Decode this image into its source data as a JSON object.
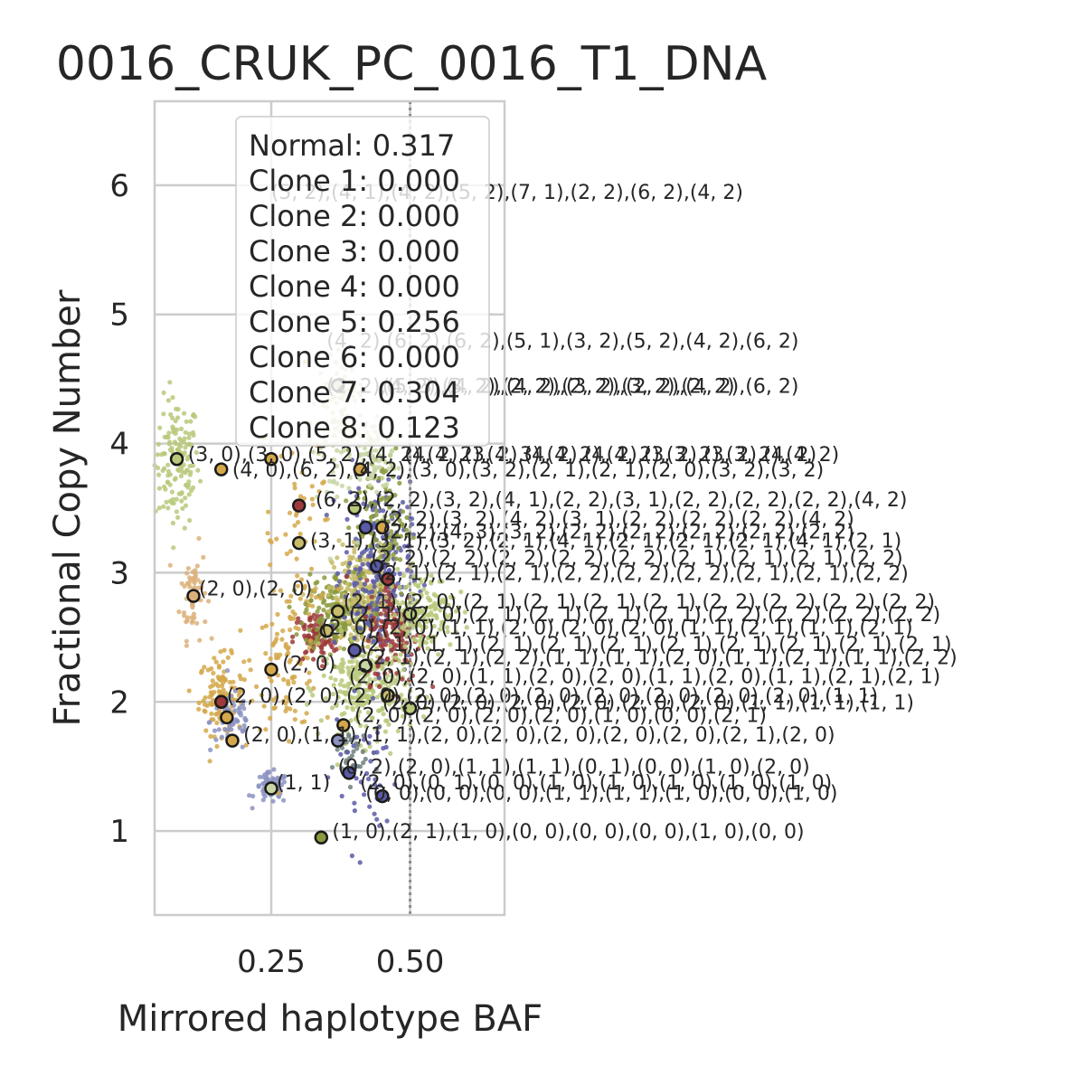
{
  "chart_data": {
    "type": "scatter",
    "title": "0016_CRUK_PC_0016_T1_DNA",
    "xlabel": "Mirrored haplotype BAF",
    "ylabel": "Fractional Copy Number",
    "xlim": [
      0.04,
      0.67
    ],
    "ylim": [
      0.35,
      6.65
    ],
    "xticks": [
      "0.25",
      "0.50"
    ],
    "xtick_values": [
      0.25,
      0.5
    ],
    "yticks": [
      "1",
      "2",
      "3",
      "4",
      "5",
      "6"
    ],
    "ytick_values": [
      1,
      2,
      3,
      4,
      5,
      6
    ],
    "grid": true,
    "vline": 0.5,
    "legend_placement": "top-center",
    "legend": [
      "Normal: 0.317",
      "Clone 1: 0.000",
      "Clone 2: 0.000",
      "Clone 3: 0.000",
      "Clone 4: 0.000",
      "Clone 5: 0.256",
      "Clone 6: 0.000",
      "Clone 7: 0.304",
      "Clone 8: 0.123"
    ],
    "cluster_colors": [
      "#b7c97a",
      "#d4a84a",
      "#5a5aa8",
      "#8a9a3c",
      "#9e3a3a",
      "#dcb07a",
      "#8c93c2",
      "#c8bc6a",
      "#c8d6a4",
      "#6f7f7f"
    ],
    "clusters": [
      {
        "x": 0.08,
        "y": 3.85,
        "sx": 0.02,
        "sy": 0.25,
        "n": 140,
        "c": 0
      },
      {
        "x": 0.11,
        "y": 2.85,
        "sx": 0.012,
        "sy": 0.18,
        "n": 60,
        "c": 5
      },
      {
        "x": 0.16,
        "y": 2.05,
        "sx": 0.02,
        "sy": 0.15,
        "n": 120,
        "c": 1
      },
      {
        "x": 0.18,
        "y": 1.85,
        "sx": 0.02,
        "sy": 0.12,
        "n": 60,
        "c": 6
      },
      {
        "x": 0.25,
        "y": 1.33,
        "sx": 0.015,
        "sy": 0.06,
        "n": 70,
        "c": 6
      },
      {
        "x": 0.28,
        "y": 2.3,
        "sx": 0.03,
        "sy": 0.25,
        "n": 90,
        "c": 1
      },
      {
        "x": 0.33,
        "y": 2.5,
        "sx": 0.02,
        "sy": 0.1,
        "n": 90,
        "c": 4
      },
      {
        "x": 0.37,
        "y": 2.7,
        "sx": 0.03,
        "sy": 0.15,
        "n": 200,
        "c": 3
      },
      {
        "x": 0.42,
        "y": 2.8,
        "sx": 0.03,
        "sy": 0.2,
        "n": 250,
        "c": 7
      },
      {
        "x": 0.42,
        "y": 2.1,
        "sx": 0.04,
        "sy": 0.2,
        "n": 260,
        "c": 0
      },
      {
        "x": 0.44,
        "y": 3.0,
        "sx": 0.03,
        "sy": 0.35,
        "n": 250,
        "c": 2
      },
      {
        "x": 0.45,
        "y": 3.4,
        "sx": 0.025,
        "sy": 0.3,
        "n": 120,
        "c": 3
      },
      {
        "x": 0.47,
        "y": 2.55,
        "sx": 0.025,
        "sy": 0.2,
        "n": 140,
        "c": 4
      },
      {
        "x": 0.52,
        "y": 2.7,
        "sx": 0.03,
        "sy": 0.15,
        "n": 160,
        "c": 0
      },
      {
        "x": 0.43,
        "y": 3.9,
        "sx": 0.02,
        "sy": 0.15,
        "n": 80,
        "c": 8
      },
      {
        "x": 0.38,
        "y": 4.45,
        "sx": 0.015,
        "sy": 0.12,
        "n": 45,
        "c": 8
      },
      {
        "x": 0.36,
        "y": 4.0,
        "sx": 0.02,
        "sy": 0.3,
        "n": 60,
        "c": 8
      },
      {
        "x": 0.39,
        "y": 1.6,
        "sx": 0.015,
        "sy": 0.12,
        "n": 40,
        "c": 9
      },
      {
        "x": 0.42,
        "y": 1.45,
        "sx": 0.03,
        "sy": 0.3,
        "n": 40,
        "c": 2
      },
      {
        "x": 0.3,
        "y": 3.2,
        "sx": 0.03,
        "sy": 0.4,
        "n": 60,
        "c": 1
      }
    ],
    "clone_points": [
      {
        "x": 0.08,
        "y": 3.88,
        "c": 0,
        "label": "(3, 0),(3, 0),(3, 0),(5, 2),(4, 2),(4, 2)"
      },
      {
        "x": 0.16,
        "y": 3.8,
        "c": 1,
        "label": "(4, 0),(6, 2),(4, 2),(4, 2),(2, 1),(3, 0),(3, 2),(2, 1),(2, 1),(2, 0),(3, 2),(3, 2)"
      },
      {
        "x": 0.25,
        "y": 3.88,
        "c": 1,
        "label": ""
      },
      {
        "x": 0.3,
        "y": 3.52,
        "c": 4,
        "label": "(6, 2),(2, 2),(3, 2),(4, 1),(2, 2),(3, 1),(2, 2),(2, 2),(2, 2),(4, 2)"
      },
      {
        "x": 0.3,
        "y": 3.23,
        "c": 7,
        "label": "(3, 1),(3, 1),(3, 2),(2, 1),(4, 1),(2, 1),(2, 1),(2, 1),(4, 1),(2, 1)"
      },
      {
        "x": 0.11,
        "y": 2.82,
        "c": 5,
        "label": "(2, 0),(2, 0)"
      },
      {
        "x": 0.25,
        "y": 2.25,
        "c": 1,
        "label": "(2, 0)"
      },
      {
        "x": 0.16,
        "y": 2.0,
        "c": 4,
        "label": "(2, 0),(2, 0),(2, 0),(2, 0),(2, 0),(2, 0),(2, 0),(2, 0),(2, 0),(1, 1)"
      },
      {
        "x": 0.17,
        "y": 1.88,
        "c": 1,
        "label": ""
      },
      {
        "x": 0.18,
        "y": 1.7,
        "c": 1,
        "label": "(2, 0),(1, 1),(1, 1),(2, 0),(2, 0),(2, 0),(2, 0),(2, 0),(2, 0),(2, 0)"
      },
      {
        "x": 0.25,
        "y": 1.33,
        "c": 8,
        "label": "(1, 1)"
      },
      {
        "x": 0.35,
        "y": 2.55,
        "c": 7,
        "label": "(2, 0)"
      },
      {
        "x": 0.37,
        "y": 2.7,
        "c": 7,
        "label": ""
      },
      {
        "x": 0.37,
        "y": 1.7,
        "c": 6,
        "label": ""
      },
      {
        "x": 0.38,
        "y": 1.82,
        "c": 1,
        "label": ""
      },
      {
        "x": 0.39,
        "y": 1.45,
        "c": 2,
        "label": "(2, 0),(0, 0),(0, 0),(1, 1),(1, 0),(1, 0),(1, 0),(0, 0),(1, 0)"
      },
      {
        "x": 0.45,
        "y": 1.27,
        "c": 2,
        "label": "(0, 0),(0, 0),(0, 0),(1, 1),(1, 1),(1, 0),(0, 0),(1, 0)"
      },
      {
        "x": 0.34,
        "y": 0.95,
        "c": 3,
        "label": "(1, 0),(2, 1),(1, 0),(0, 0),(0, 0),(0, 0),(1, 0),(0, 0)"
      },
      {
        "x": 0.4,
        "y": 3.5,
        "c": 0,
        "label": "(2, 2),(3, 2),(4, 2),(3, 1),(2, 2),(2, 2),(2, 2),(4, 2)"
      },
      {
        "x": 0.42,
        "y": 3.35,
        "c": 2,
        "label": ""
      },
      {
        "x": 0.45,
        "y": 3.35,
        "c": 1,
        "label": "(2, 2),(4, 3),(3, 2),(2, 2),(2, 2),(2, 2),(2, 2),(2, 2)"
      },
      {
        "x": 0.44,
        "y": 3.05,
        "c": 2,
        "label": "(2, 2),(2, 2),(2, 2),(2, 2),(2, 1),(2, 1),(2, 1),(2, 2)"
      },
      {
        "x": 0.46,
        "y": 2.95,
        "c": 4,
        "label": "(2, 1),(2, 1),(2, 1),(2, 2),(2, 2),(2, 2),(2, 1),(2, 1),(2, 2)"
      },
      {
        "x": 0.5,
        "y": 2.68,
        "c": 0,
        "label": "(2, 1),(2, 0),(2, 1),(2, 1),(2, 1),(2, 1),(2, 2),(2, 2),(2, 2)"
      },
      {
        "x": 0.4,
        "y": 2.4,
        "c": 2,
        "label": "(2, 1),(2, 1),(2, 1),(2, 1),(2, 1),(2, 1),(2, 1),(2, 1),(2, 1)"
      },
      {
        "x": 0.42,
        "y": 2.28,
        "c": 8,
        "label": "(2, 1),(2, 1),(2, 2),(1, 1),(1, 1),(2, 0),(1, 1),(2, 1),(1, 1),(2, 2)"
      },
      {
        "x": 0.46,
        "y": 2.05,
        "c": 7,
        "label": "(2, 0),(2, 0),(2, 0),(2, 0),(2, 0),(2, 0),(1, 1),(1, 1),(1, 1)"
      },
      {
        "x": 0.5,
        "y": 1.95,
        "c": 0,
        "label": "(2, 0),(2, 0),(2, 0),(2, 0),(1, 0),(0, 0),(2, 1)"
      },
      {
        "x": 0.37,
        "y": 4.45,
        "c": 8,
        "label": "(2, 2),(5, 3),(4, 2),(4, 2),(3, 2),(2, 2),(4, 2),(6, 2)"
      },
      {
        "x": 0.41,
        "y": 3.8,
        "c": 1,
        "label": ""
      }
    ],
    "annotations": [
      {
        "x": 0.24,
        "y": 5.95,
        "text": "(5, 2),(4, 1),(4, 2),(5, 2),(7, 1),(2, 2),(6, 2),(4, 2)"
      },
      {
        "x": 0.34,
        "y": 4.8,
        "text": "(4, 2),(6, 2),(6, 2),(5, 1),(3, 2),(5, 2),(4, 2),(6, 2)"
      },
      {
        "x": 0.34,
        "y": 4.45,
        "text": "(2, 2),(5, 3),(4, 2),(4, 2),(3, 2),(2, 2),(4, 2),(6, 2)"
      },
      {
        "x": 0.44,
        "y": 4.45,
        "text": "(4, 2),(3, 2),(2, 2),(2, 2),(3, 2),(2, 2)"
      },
      {
        "x": 0.09,
        "y": 3.92,
        "text": "(3, 0),(3, 0),(5, 2),(4, 2),(4, 2),(4, 3),(4, 2),(4, 2),(3, 2),(3, 2),(4, 2)"
      },
      {
        "x": 0.48,
        "y": 3.92,
        "text": "(4, 2),(3, 2),(4, 2),(4, 2),(3, 2),(3, 2),(4, 2)"
      },
      {
        "x": 0.17,
        "y": 3.8,
        "text": "(4, 0),(6, 2),(4, 2),(3, 0),(3, 2),(2, 1),(2, 1),(2, 0),(3, 2),(3, 2)"
      },
      {
        "x": 0.32,
        "y": 3.57,
        "text": "(6, 2),(2, 2),(3, 2),(4, 1),(2, 2),(3, 1),(2, 2),(2, 2),(2, 2),(4, 2)"
      },
      {
        "x": 0.44,
        "y": 3.42,
        "text": "(2, 2),(3, 2),(4, 2),(3, 1),(2, 2),(2, 2),(2, 2),(4, 2)"
      },
      {
        "x": 0.44,
        "y": 3.32,
        "text": "(2, 2),(4, 3),(3, 2),(2, 2),(2, 2),(2, 2),(2, 2),(2, 2)"
      },
      {
        "x": 0.31,
        "y": 3.25,
        "text": "(3, 1),(3, 1),(3, 2),(2, 1),(4, 1),(2, 1),(2, 1),(2, 1),(4, 1),(2, 1)"
      },
      {
        "x": 0.42,
        "y": 3.12,
        "text": "(2, 2),(2, 2),(2, 2),(2, 2),(2, 2),(2, 1),(2, 1),(2, 1),(2, 2)"
      },
      {
        "x": 0.43,
        "y": 3.0,
        "text": "(2, 1),(2, 1),(2, 1),(2, 2),(2, 2),(2, 2),(2, 1),(2, 1),(2, 2)"
      },
      {
        "x": 0.11,
        "y": 2.88,
        "text": "(2, 0),(2, 0)"
      },
      {
        "x": 0.37,
        "y": 2.78,
        "text": "(2, 1),(2, 0),(2, 1),(2, 1),(2, 1),(2, 1),(2, 2),(2, 2),(2, 2),(2, 2)"
      },
      {
        "x": 0.38,
        "y": 2.68,
        "text": "(2, 1),(2, 0),(2, 1),(2, 1),(2, 1),(2, 1),(2, 2),(2, 2),(2, 2),(2, 2)"
      },
      {
        "x": 0.33,
        "y": 2.58,
        "text": "(2, 0),(2, 0),(1, 1),(2, 0),(2, 0),(2, 0),(1, 1),(2, 1),(1, 1),(2, 1)"
      },
      {
        "x": 0.4,
        "y": 2.45,
        "text": "(2, 1),(1, 1),(2, 1),(2, 1),(2, 1),(2, 1),(2, 1),(2, 1),(2, 1),(2, 1)"
      },
      {
        "x": 0.41,
        "y": 2.35,
        "text": "(2, 1),(2, 1),(2, 2),(1, 1),(1, 1),(2, 0),(1, 1),(2, 1),(1, 1),(2, 2)"
      },
      {
        "x": 0.26,
        "y": 2.3,
        "text": "(2, 0)"
      },
      {
        "x": 0.38,
        "y": 2.2,
        "text": "(2, 0),(2, 0),(1, 1),(2, 0),(2, 0),(1, 1),(2, 0),(1, 1),(2, 1),(2, 1)"
      },
      {
        "x": 0.16,
        "y": 2.05,
        "text": "(2, 0),(2, 0),(2, 0),(2, 0),(2, 0),(2, 0),(2, 0),(2, 0),(2, 0),(2, 0),(1, 1)"
      },
      {
        "x": 0.44,
        "y": 2.0,
        "text": "(2, 0),(2, 0),(2, 0),(2, 0),(2, 0),(2, 0),(1, 1),(1, 1),(1, 1)"
      },
      {
        "x": 0.39,
        "y": 1.9,
        "text": "(2, 0),(2, 0),(2, 0),(2, 0),(1, 0),(0, 0),(2, 1)"
      },
      {
        "x": 0.19,
        "y": 1.75,
        "text": "(2, 0),(1, 1),(1, 1),(2, 0),(2, 0),(2, 0),(2, 0),(2, 0),(2, 1),(2, 0)"
      },
      {
        "x": 0.36,
        "y": 1.5,
        "text": "(0, 2),(2, 0),(1, 1),(1, 1),(0, 1),(0, 0),(1, 0),(2, 0)"
      },
      {
        "x": 0.4,
        "y": 1.38,
        "text": "(2, 0),(0, 1),(0, 0),(1, 0),(1, 0),(1, 0),(1, 0),(1, 0)"
      },
      {
        "x": 0.25,
        "y": 1.38,
        "text": "(1, 1)"
      },
      {
        "x": 0.41,
        "y": 1.3,
        "text": "(0, 0),(0, 0),(0, 0),(1, 1),(1, 1),(1, 0),(0, 0),(1, 0)"
      },
      {
        "x": 0.35,
        "y": 1.0,
        "text": "(1, 0),(2, 1),(1, 0),(0, 0),(0, 0),(0, 0),(1, 0),(0, 0)"
      }
    ]
  }
}
